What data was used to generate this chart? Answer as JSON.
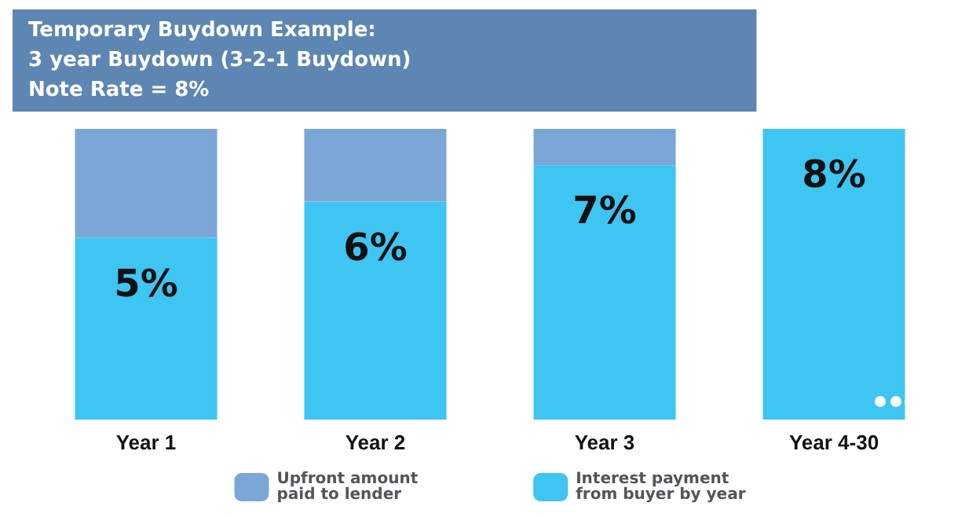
{
  "chart_data": {
    "type": "bar",
    "title": "Temporary Buydown Example:\n3 year Buydown (3-2-1 Buydown)\nNote Rate = 8%",
    "categories": [
      "Year 1",
      "Year 2",
      "Year 3",
      "Year 4-30"
    ],
    "stacked": true,
    "ylim": [
      0,
      8
    ],
    "tick_labels": "x",
    "grid": false,
    "legend": "bottom",
    "series": [
      {
        "name": "Interest payment from buyer by year",
        "color": "#3ec5f2",
        "values": [
          5,
          6,
          7,
          8
        ],
        "value_labels": [
          "5%",
          "6%",
          "7%",
          "8%"
        ]
      },
      {
        "name": "Upfront amount paid to lender",
        "color": "#7aa7d6",
        "values": [
          3,
          2,
          1,
          0
        ]
      }
    ]
  }
}
